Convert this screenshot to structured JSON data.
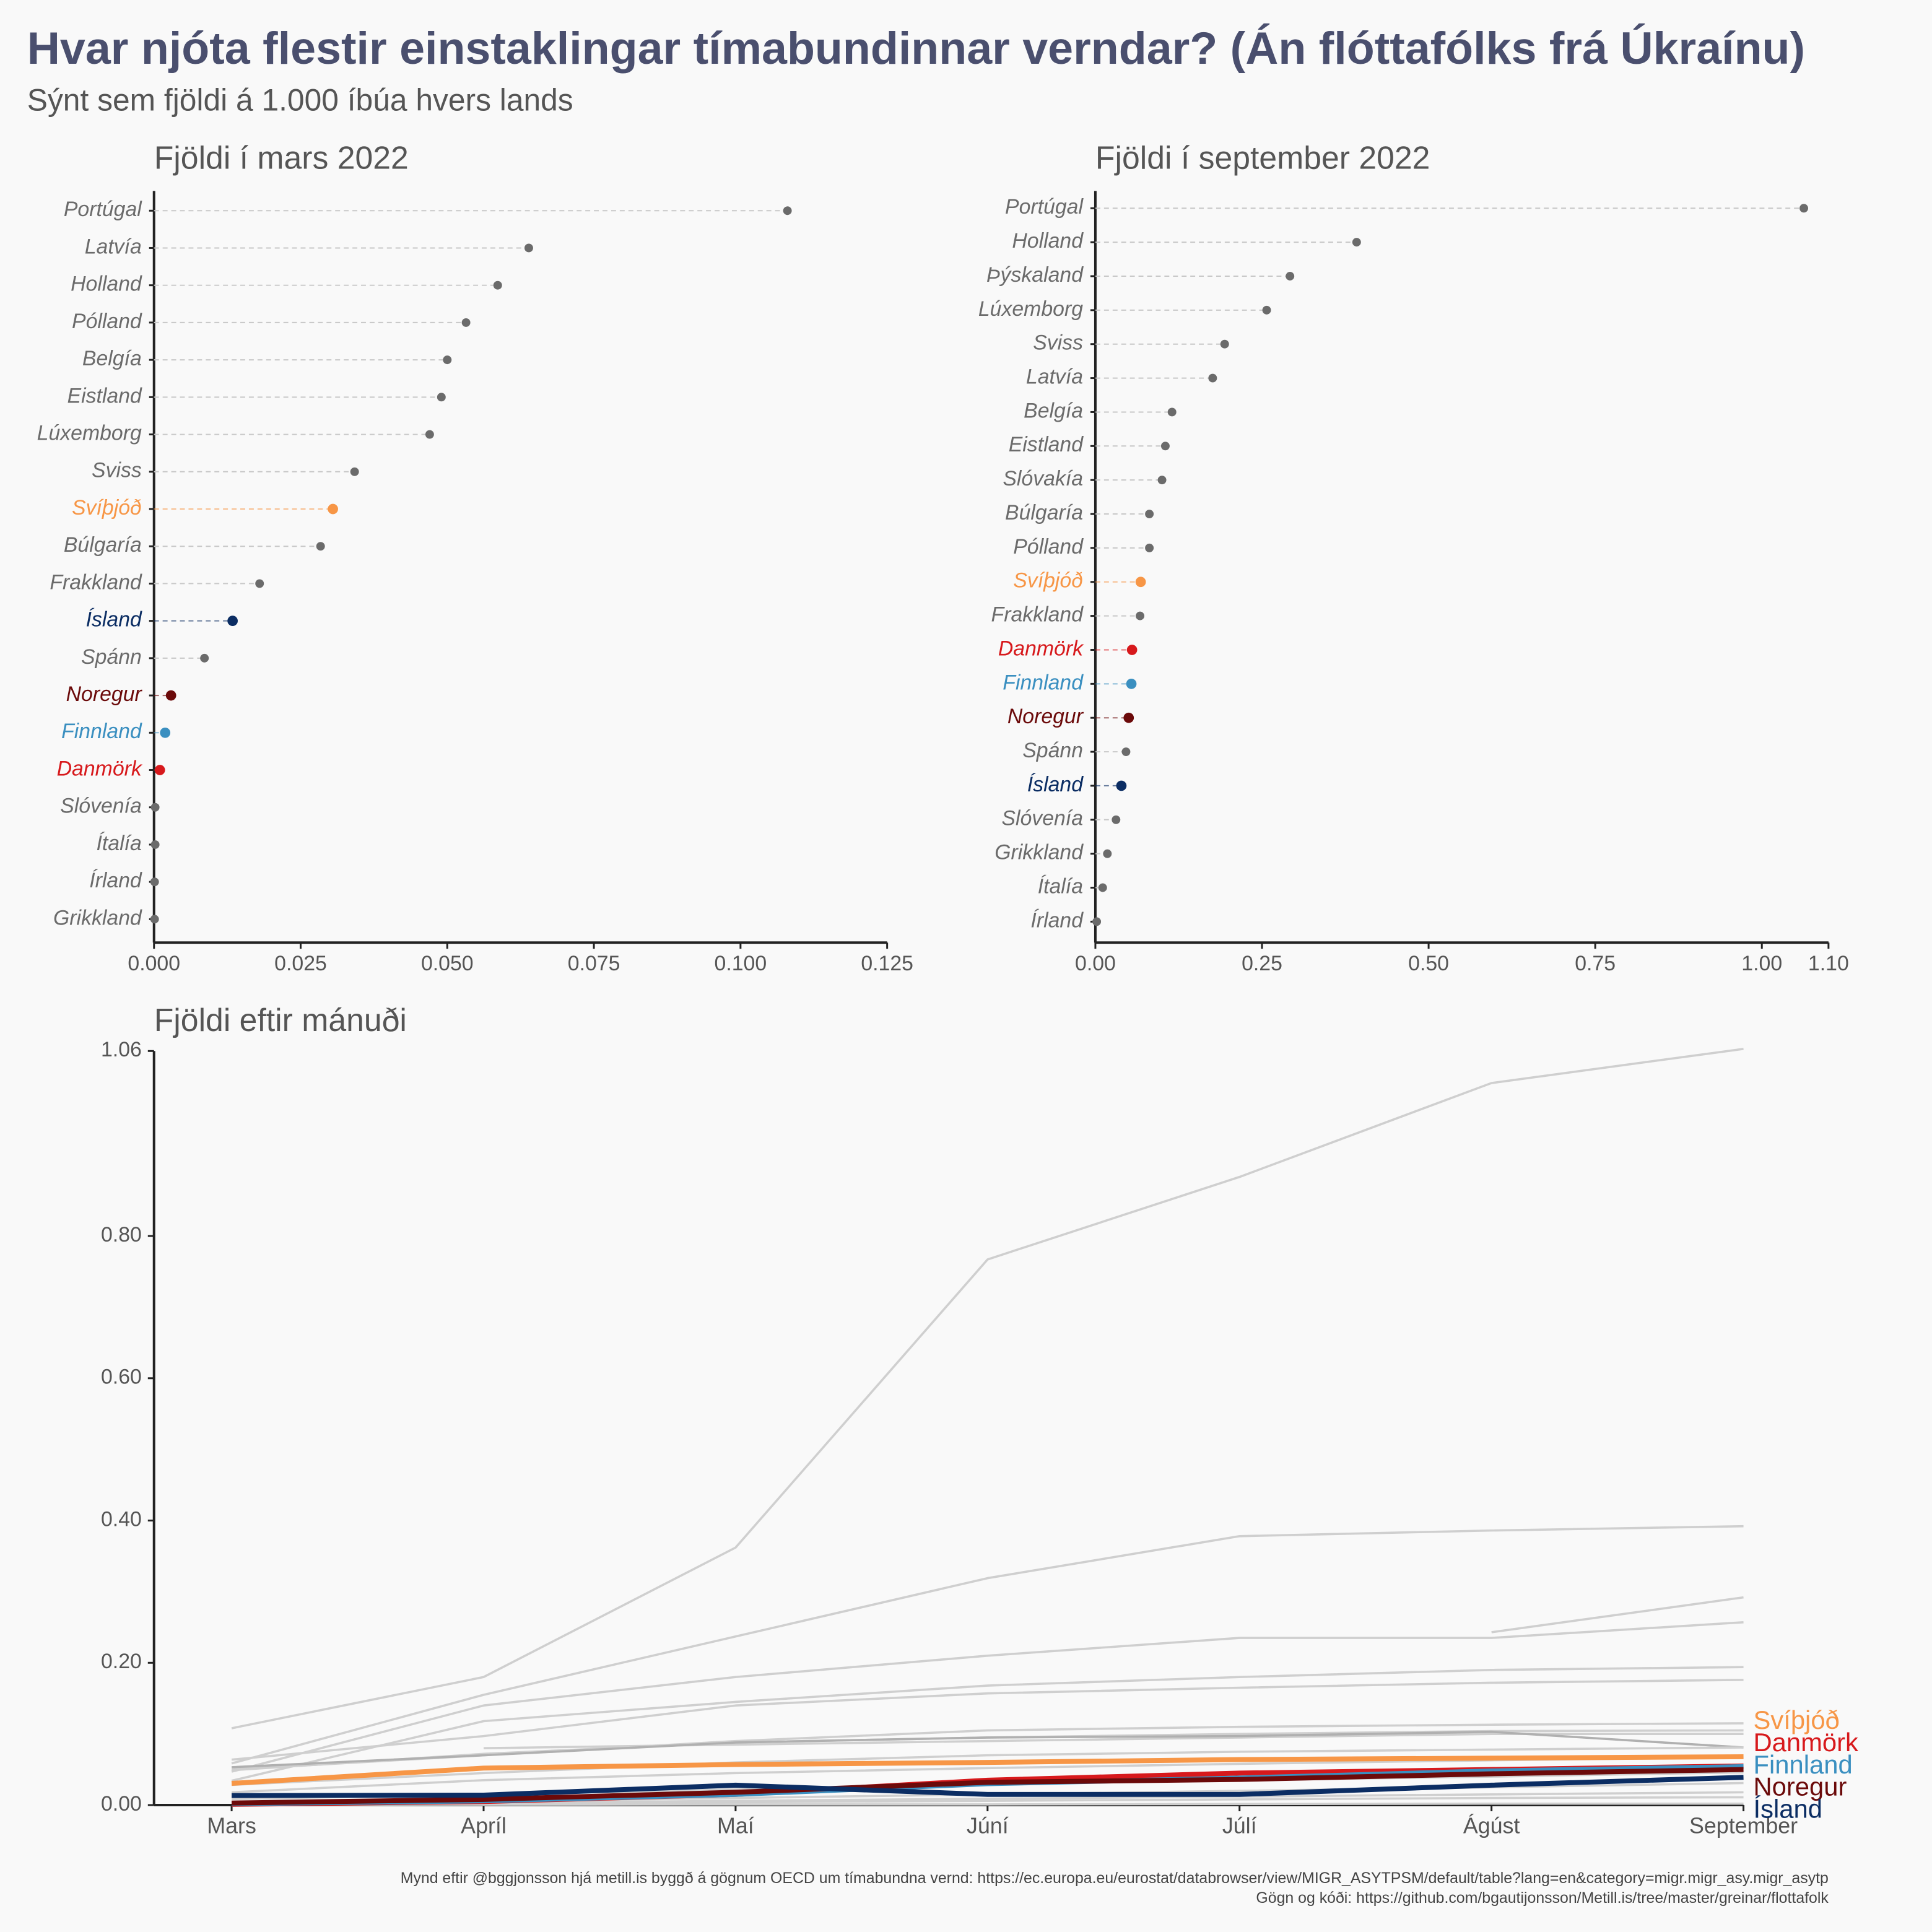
{
  "title": "Hvar njóta flestir einstaklingar tímabundinnar verndar? (Án flóttafólks frá Úkraínu)",
  "subtitle": "Sýnt sem fjöldi á 1.000 íbúa hvers lands",
  "caption": [
    "Mynd eftir @bggjonsson hjá metill.is byggð á gögnum OECD um tímabundna vernd: https://ec.europa.eu/eurostat/databrowser/view/MIGR_ASYTPSM/default/table?lang=en&category=migr.migr_asy.migr_asytp",
    "Gögn og kóði: https://github.com/bgautijonsson/Metill.is/tree/master/greinar/flottafolk"
  ],
  "chart_data": [
    {
      "type": "dot",
      "title": "Fjöldi í mars 2022",
      "categories": [
        "Portúgal",
        "Latvía",
        "Holland",
        "Pólland",
        "Belgía",
        "Eistland",
        "Lúxemborg",
        "Sviss",
        "Svíþjóð",
        "Búlgaría",
        "Frakkland",
        "Ísland",
        "Spánn",
        "Noregur",
        "Finnland",
        "Danmörk",
        "Slóvenía",
        "Ítalía",
        "Írland",
        "Grikkland"
      ],
      "values": [
        0.108,
        0.0639,
        0.0586,
        0.0532,
        0.05,
        0.049,
        0.047,
        0.0342,
        0.0305,
        0.0284,
        0.018,
        0.0134,
        0.0086,
        0.0029,
        0.0019,
        0.001,
        0.0002,
        0.0002,
        0.0001,
        0.0001
      ],
      "colors": [
        "#6b6b6b",
        "#6b6b6b",
        "#6b6b6b",
        "#6b6b6b",
        "#6b6b6b",
        "#6b6b6b",
        "#6b6b6b",
        "#6b6b6b",
        "#f79646",
        "#6b6b6b",
        "#6b6b6b",
        "#0b2d63",
        "#6b6b6b",
        "#6b0a0a",
        "#3a8fc0",
        "#d7191c",
        "#6b6b6b",
        "#6b6b6b",
        "#6b6b6b",
        "#6b6b6b"
      ],
      "xlim": [
        0,
        0.125
      ],
      "xticks": [
        {
          "value": 0,
          "label": "0.000"
        },
        {
          "value": 0.025,
          "label": "0.025"
        },
        {
          "value": 0.05,
          "label": "0.050"
        },
        {
          "value": 0.075,
          "label": "0.075"
        },
        {
          "value": 0.1,
          "label": "0.100"
        },
        {
          "value": 0.125,
          "label": "0.125"
        }
      ]
    },
    {
      "type": "dot",
      "title": "Fjöldi í september 2022",
      "categories": [
        "Portúgal",
        "Holland",
        "Þýskaland",
        "Lúxemborg",
        "Sviss",
        "Latvía",
        "Belgía",
        "Eistland",
        "Slóvakía",
        "Búlgaría",
        "Pólland",
        "Svíþjóð",
        "Frakkland",
        "Danmörk",
        "Finnland",
        "Noregur",
        "Spánn",
        "Ísland",
        "Slóvenía",
        "Grikkland",
        "Ítalía",
        "Írland"
      ],
      "values": [
        1.063,
        0.392,
        0.292,
        0.257,
        0.194,
        0.176,
        0.115,
        0.105,
        0.1,
        0.081,
        0.081,
        0.068,
        0.067,
        0.055,
        0.054,
        0.05,
        0.046,
        0.039,
        0.031,
        0.018,
        0.011,
        0.002
      ],
      "colors": [
        "#6b6b6b",
        "#6b6b6b",
        "#6b6b6b",
        "#6b6b6b",
        "#6b6b6b",
        "#6b6b6b",
        "#6b6b6b",
        "#6b6b6b",
        "#6b6b6b",
        "#6b6b6b",
        "#6b6b6b",
        "#f79646",
        "#6b6b6b",
        "#d7191c",
        "#3a8fc0",
        "#6b0a0a",
        "#6b6b6b",
        "#0b2d63",
        "#6b6b6b",
        "#6b6b6b",
        "#6b6b6b",
        "#6b6b6b"
      ],
      "xlim": [
        0,
        1.1
      ],
      "xticks": [
        {
          "value": 0,
          "label": "0.00"
        },
        {
          "value": 0.25,
          "label": "0.25"
        },
        {
          "value": 0.5,
          "label": "0.50"
        },
        {
          "value": 0.75,
          "label": "0.75"
        },
        {
          "value": 1,
          "label": "1.00"
        },
        {
          "value": 1.1,
          "label": "1.10"
        }
      ]
    },
    {
      "type": "line",
      "title": "Fjöldi eftir mánuði",
      "categories": [
        "Mars",
        "Apríl",
        "Maí",
        "Júní",
        "Júlí",
        "Ágúst",
        "September"
      ],
      "ylim": [
        0,
        1.06
      ],
      "yticks": [
        {
          "value": 0,
          "label": "0.00"
        },
        {
          "value": 0.2,
          "label": "0.20"
        },
        {
          "value": 0.4,
          "label": "0.40"
        },
        {
          "value": 0.6,
          "label": "0.60"
        },
        {
          "value": 0.8,
          "label": "0.80"
        },
        1.06
      ],
      "series": [
        {
          "color": "#cfcfcf",
          "values": [
            0.108,
            0.18,
            0.362,
            0.767,
            0.883,
            1.015,
            1.063
          ]
        },
        {
          "color": "#cfcfcf",
          "values": [
            0.0586,
            0.155,
            0.237,
            0.319,
            0.378,
            0.386,
            0.392
          ]
        },
        {
          "color": "#cfcfcf",
          "values": [
            null,
            null,
            null,
            null,
            null,
            0.243,
            0.292
          ]
        },
        {
          "color": "#cfcfcf",
          "values": [
            0.047,
            0.14,
            0.18,
            0.21,
            0.235,
            0.235,
            0.257
          ]
        },
        {
          "color": "#cfcfcf",
          "values": [
            0.0342,
            0.118,
            0.145,
            0.168,
            0.18,
            0.19,
            0.194
          ]
        },
        {
          "color": "#cfcfcf",
          "values": [
            0.0639,
            0.097,
            0.14,
            0.157,
            0.165,
            0.172,
            0.176
          ]
        },
        {
          "color": "#cfcfcf",
          "values": [
            0.05,
            0.07,
            0.09,
            0.105,
            0.11,
            0.113,
            0.115
          ]
        },
        {
          "color": "#cfcfcf",
          "values": [
            0.049,
            0.072,
            0.088,
            0.095,
            0.1,
            0.104,
            0.105
          ]
        },
        {
          "color": "#cfcfcf",
          "values": [
            null,
            0.08,
            0.085,
            0.09,
            0.095,
            0.1,
            0.1
          ]
        },
        {
          "color": "#b0b0b0",
          "values": [
            0.0532,
            0.07,
            0.088,
            0.095,
            0.097,
            0.103,
            0.081
          ]
        },
        {
          "color": "#cfcfcf",
          "values": [
            0.0284,
            0.045,
            0.06,
            0.07,
            0.075,
            0.078,
            0.081
          ]
        },
        {
          "color": "#cfcfcf",
          "values": [
            0.018,
            0.035,
            0.045,
            0.052,
            0.058,
            0.063,
            0.067
          ]
        },
        {
          "color": "#cfcfcf",
          "values": [
            0.0086,
            0.015,
            0.022,
            0.03,
            0.035,
            0.04,
            0.046
          ]
        },
        {
          "color": "#cfcfcf",
          "values": [
            0.0002,
            0.005,
            0.01,
            0.015,
            0.02,
            0.025,
            0.031
          ]
        },
        {
          "color": "#cfcfcf",
          "values": [
            0.0001,
            0.003,
            0.006,
            0.009,
            0.012,
            0.015,
            0.018
          ]
        },
        {
          "color": "#cfcfcf",
          "values": [
            0.0002,
            0.002,
            0.004,
            0.006,
            0.008,
            0.01,
            0.011
          ]
        },
        {
          "color": "#cfcfcf",
          "values": [
            0.0001,
            0.0005,
            0.001,
            0.001,
            0.0015,
            0.002,
            0.002
          ]
        },
        {
          "name": "Svíþjóð",
          "color": "#f79646",
          "values": [
            0.0305,
            0.052,
            0.057,
            0.06,
            0.064,
            0.066,
            0.068
          ]
        },
        {
          "name": "Danmörk",
          "color": "#d7191c",
          "values": [
            0.001,
            0.005,
            0.015,
            0.035,
            0.045,
            0.05,
            0.055
          ]
        },
        {
          "name": "Finnland",
          "color": "#3a8fc0",
          "values": [
            0.0019,
            0.006,
            0.015,
            0.03,
            0.038,
            0.048,
            0.054
          ]
        },
        {
          "name": "Noregur",
          "color": "#6b0a0a",
          "values": [
            0.0029,
            0.008,
            0.018,
            0.032,
            0.036,
            0.044,
            0.05
          ]
        },
        {
          "name": "Ísland",
          "color": "#0b2d63",
          "values": [
            0.0134,
            0.014,
            0.028,
            0.015,
            0.015,
            0.028,
            0.039
          ]
        }
      ]
    }
  ]
}
